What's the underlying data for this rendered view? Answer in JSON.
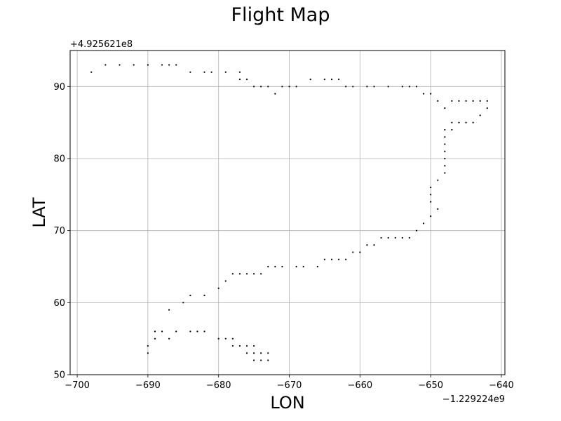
{
  "chart_data": {
    "type": "scatter",
    "title": "Flight Map",
    "xlabel": "LON",
    "ylabel": "LAT",
    "x_offset_text": "−1.229224e9",
    "y_offset_text": "+4.925621e8",
    "xlim": [
      -701,
      -639.5
    ],
    "ylim": [
      50,
      95
    ],
    "x_ticks": [
      -700,
      -690,
      -680,
      -670,
      -660,
      -650,
      -640
    ],
    "x_tick_labels": [
      "−700",
      "−690",
      "−680",
      "−670",
      "−660",
      "−650",
      "−640"
    ],
    "y_ticks": [
      50,
      60,
      70,
      80,
      90
    ],
    "y_tick_labels": [
      "50",
      "60",
      "70",
      "80",
      "90"
    ],
    "grid": true,
    "marker_color": "#000000",
    "points": [
      [
        -698,
        92
      ],
      [
        -696,
        93
      ],
      [
        -694,
        93
      ],
      [
        -692,
        93
      ],
      [
        -690,
        93
      ],
      [
        -688,
        93
      ],
      [
        -687,
        93
      ],
      [
        -686,
        93
      ],
      [
        -684,
        92
      ],
      [
        -682,
        92
      ],
      [
        -681,
        92
      ],
      [
        -679,
        92
      ],
      [
        -677,
        92
      ],
      [
        -677,
        91
      ],
      [
        -676,
        91
      ],
      [
        -675,
        90
      ],
      [
        -674,
        90
      ],
      [
        -673,
        90
      ],
      [
        -672,
        89
      ],
      [
        -671,
        90
      ],
      [
        -670,
        90
      ],
      [
        -669,
        90
      ],
      [
        -667,
        91
      ],
      [
        -665,
        91
      ],
      [
        -664,
        91
      ],
      [
        -663,
        91
      ],
      [
        -662,
        90
      ],
      [
        -661,
        90
      ],
      [
        -659,
        90
      ],
      [
        -658,
        90
      ],
      [
        -656,
        90
      ],
      [
        -654,
        90
      ],
      [
        -653,
        90
      ],
      [
        -652,
        90
      ],
      [
        -651,
        89
      ],
      [
        -650,
        89
      ],
      [
        -649,
        88
      ],
      [
        -648,
        87
      ],
      [
        -647,
        88
      ],
      [
        -646,
        88
      ],
      [
        -645,
        88
      ],
      [
        -644,
        88
      ],
      [
        -643,
        88
      ],
      [
        -642,
        88
      ],
      [
        -642,
        87
      ],
      [
        -643,
        86
      ],
      [
        -644,
        85
      ],
      [
        -645,
        85
      ],
      [
        -646,
        85
      ],
      [
        -647,
        85
      ],
      [
        -647,
        84
      ],
      [
        -648,
        84
      ],
      [
        -648,
        83
      ],
      [
        -648,
        82
      ],
      [
        -648,
        81
      ],
      [
        -648,
        80
      ],
      [
        -648,
        79
      ],
      [
        -648,
        78
      ],
      [
        -649,
        77
      ],
      [
        -650,
        76
      ],
      [
        -650,
        75
      ],
      [
        -650,
        74
      ],
      [
        -649,
        73
      ],
      [
        -650,
        72
      ],
      [
        -651,
        71
      ],
      [
        -652,
        70
      ],
      [
        -653,
        69
      ],
      [
        -654,
        69
      ],
      [
        -655,
        69
      ],
      [
        -656,
        69
      ],
      [
        -657,
        69
      ],
      [
        -658,
        68
      ],
      [
        -659,
        68
      ],
      [
        -660,
        67
      ],
      [
        -661,
        67
      ],
      [
        -662,
        66
      ],
      [
        -663,
        66
      ],
      [
        -664,
        66
      ],
      [
        -665,
        66
      ],
      [
        -666,
        65
      ],
      [
        -668,
        65
      ],
      [
        -669,
        65
      ],
      [
        -671,
        65
      ],
      [
        -672,
        65
      ],
      [
        -673,
        65
      ],
      [
        -674,
        64
      ],
      [
        -675,
        64
      ],
      [
        -676,
        64
      ],
      [
        -677,
        64
      ],
      [
        -678,
        64
      ],
      [
        -679,
        63
      ],
      [
        -680,
        62
      ],
      [
        -682,
        61
      ],
      [
        -684,
        61
      ],
      [
        -685,
        60
      ],
      [
        -687,
        59
      ],
      [
        -682,
        56
      ],
      [
        -683,
        56
      ],
      [
        -684,
        56
      ],
      [
        -686,
        56
      ],
      [
        -688,
        56
      ],
      [
        -689,
        56
      ],
      [
        -689,
        55
      ],
      [
        -687,
        55
      ],
      [
        -690,
        54
      ],
      [
        -690,
        53
      ],
      [
        -680,
        55
      ],
      [
        -679,
        55
      ],
      [
        -678,
        55
      ],
      [
        -678,
        54
      ],
      [
        -677,
        54
      ],
      [
        -676,
        54
      ],
      [
        -675,
        54
      ],
      [
        -676,
        53
      ],
      [
        -675,
        53
      ],
      [
        -674,
        53
      ],
      [
        -673,
        53
      ],
      [
        -675,
        52
      ],
      [
        -674,
        52
      ],
      [
        -673,
        52
      ]
    ]
  }
}
